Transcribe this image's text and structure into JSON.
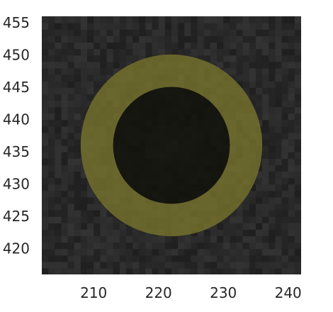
{
  "chart_data": {
    "type": "heatmap",
    "title": "",
    "xlabel": "",
    "ylabel": "",
    "xlim": [
      202,
      242
    ],
    "ylim": [
      416,
      456
    ],
    "xticks": [
      210,
      220,
      230,
      240
    ],
    "yticks": [
      420,
      425,
      430,
      435,
      440,
      445,
      450,
      455
    ],
    "grid": false,
    "image": {
      "description_colormap": "grayscale",
      "background_level": 0.16,
      "center_level": 0.25
    },
    "annulus": {
      "center": [
        222,
        436
      ],
      "inner_radius": 9,
      "outer_radius": 14,
      "color": "#7d7a2e",
      "alpha": 0.75
    },
    "inner_disk": {
      "center": [
        222,
        436
      ],
      "radius": 9,
      "color": "#12130a"
    }
  }
}
